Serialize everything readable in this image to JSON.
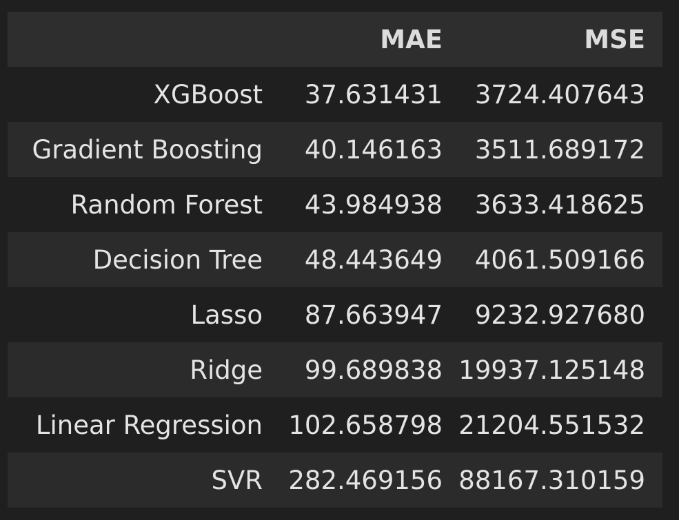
{
  "table": {
    "columns": [
      "",
      "MAE",
      "MSE"
    ],
    "rows": [
      {
        "model": "XGBoost",
        "mae": "37.631431",
        "mse": "3724.407643"
      },
      {
        "model": "Gradient Boosting",
        "mae": "40.146163",
        "mse": "3511.689172"
      },
      {
        "model": "Random Forest",
        "mae": "43.984938",
        "mse": "3633.418625"
      },
      {
        "model": "Decision Tree",
        "mae": "48.443649",
        "mse": "4061.509166"
      },
      {
        "model": "Lasso",
        "mae": "87.663947",
        "mse": "9232.927680"
      },
      {
        "model": "Ridge",
        "mae": "99.689838",
        "mse": "19937.125148"
      },
      {
        "model": "Linear Regression",
        "mae": "102.658798",
        "mse": "21204.551532"
      },
      {
        "model": "SVR",
        "mae": "282.469156",
        "mse": "88167.310159"
      }
    ]
  },
  "colors": {
    "background": "#1f1f1f",
    "header_bg": "#2e2e2e",
    "stripe_bg": "#2b2b2b",
    "text": "#e4e4e4"
  }
}
